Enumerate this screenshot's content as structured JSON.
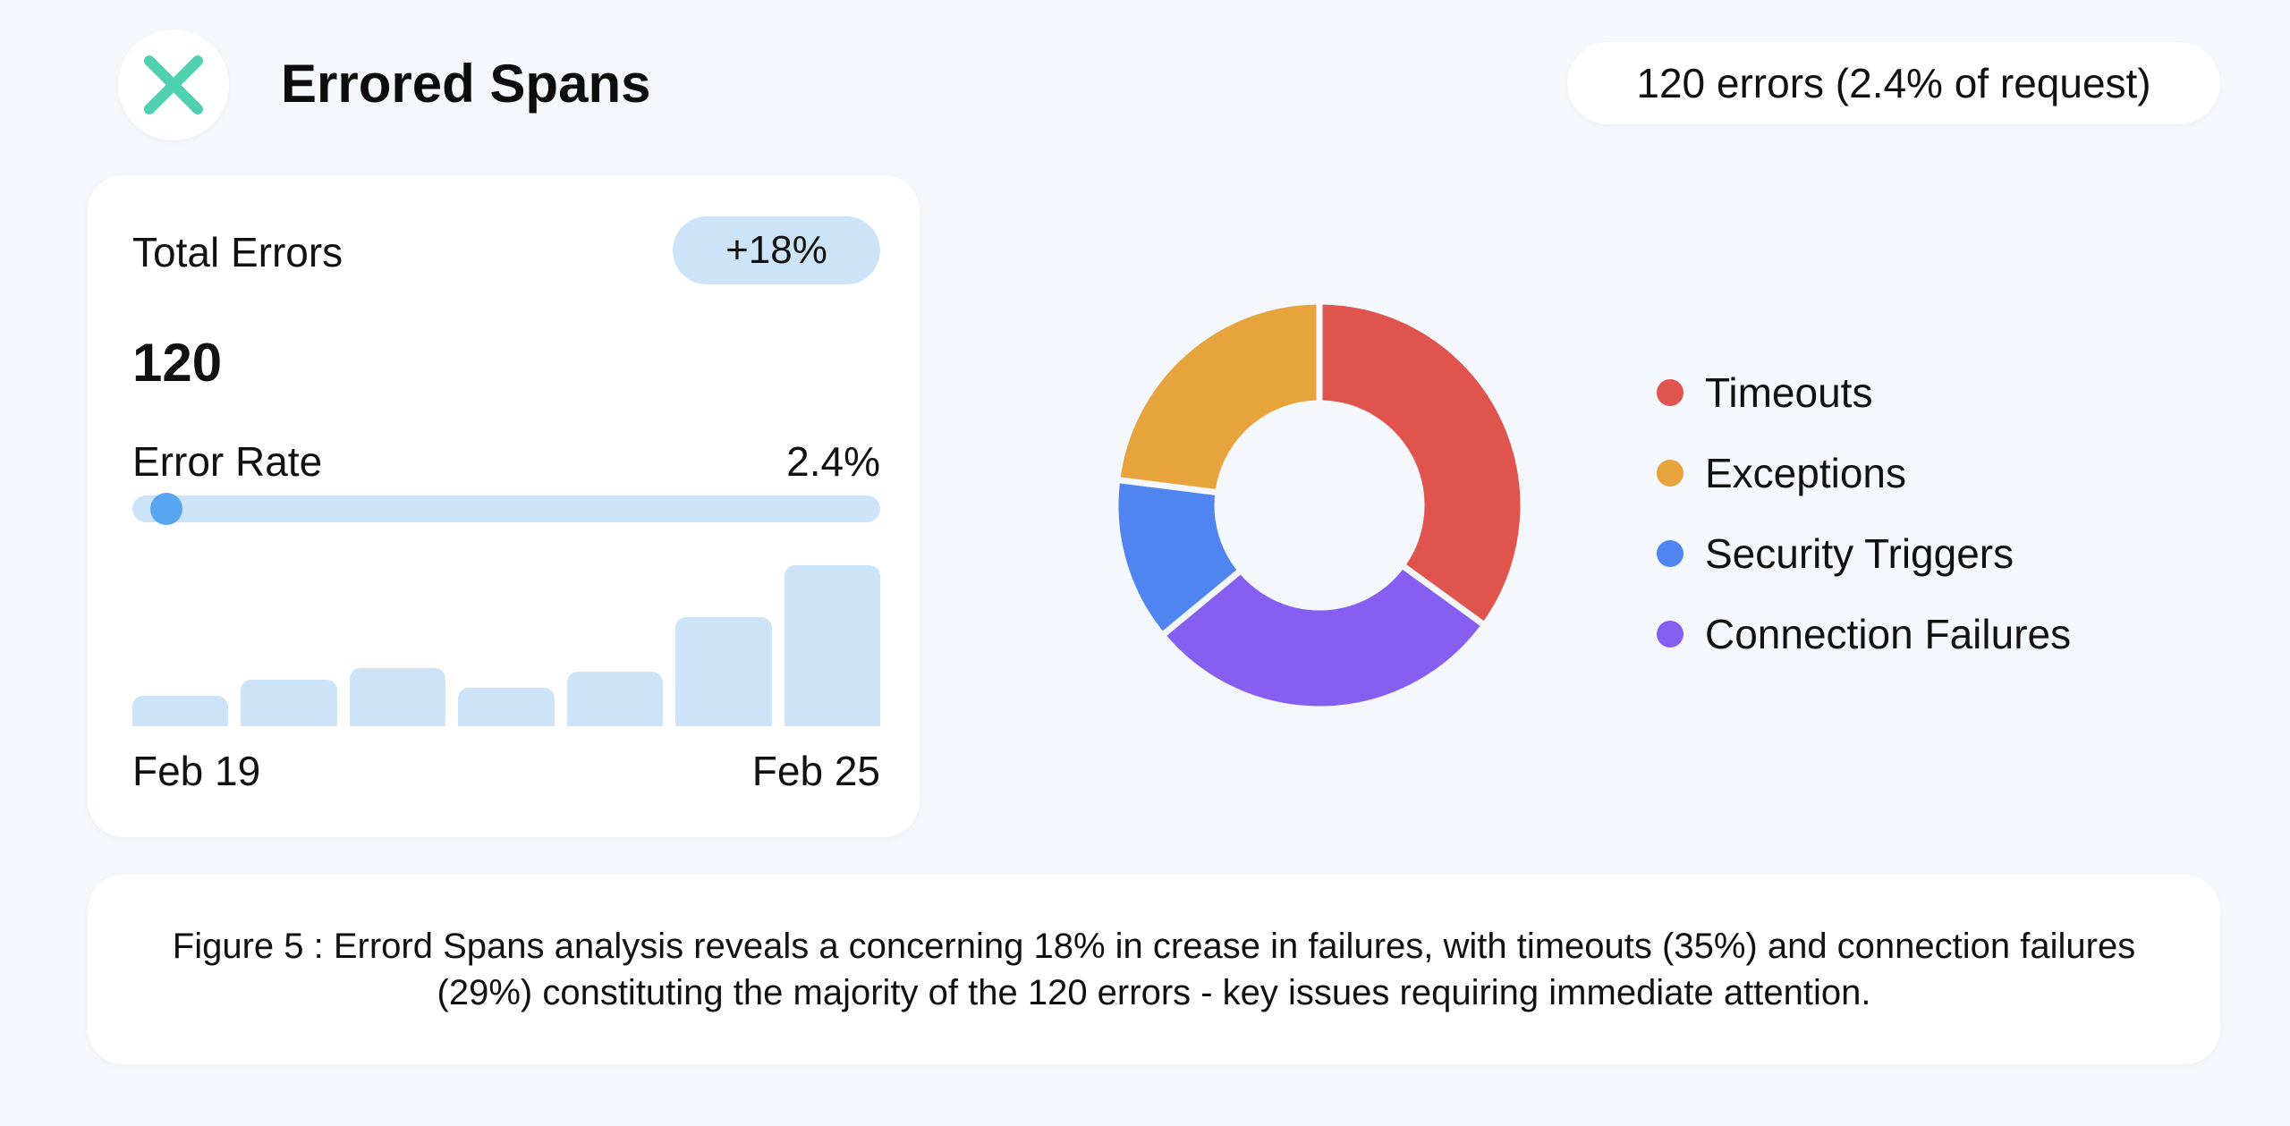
{
  "header": {
    "title": "Errored Spans",
    "summary": "120 errors (2.4% of request)",
    "logo_icon": "close-x-icon",
    "logo_color": "#4fd1b0"
  },
  "card": {
    "total_label": "Total Errors",
    "change_badge": "+18%",
    "total_value": "120",
    "rate_label": "Error Rate",
    "rate_value": "2.4%",
    "rate_fraction": 0.024,
    "start_date": "Feb 19",
    "end_date": "Feb 25"
  },
  "chart_data": [
    {
      "type": "bar",
      "categories": [
        "Feb 19",
        "",
        "",
        "",
        "",
        "",
        "Feb 25"
      ],
      "values": [
        19,
        29,
        36,
        24,
        34,
        68,
        100
      ],
      "title": "",
      "xlabel": "",
      "ylabel": "",
      "grid": false,
      "color": "#cde3f8"
    },
    {
      "type": "pie",
      "donut": true,
      "labels": [
        "Timeouts",
        "Connection Failures",
        "Security Triggers",
        "Exceptions"
      ],
      "values": [
        35,
        29,
        13,
        23
      ],
      "colors": [
        "#e0544e",
        "#875ff0",
        "#5084f0",
        "#e8a43c"
      ],
      "legend_position": "right",
      "legend": [
        {
          "label": "Timeouts",
          "color": "#e0544e"
        },
        {
          "label": "Exceptions",
          "color": "#e8a43c"
        },
        {
          "label": "Security Triggers",
          "color": "#5084f0"
        },
        {
          "label": "Connection Failures",
          "color": "#875ff0"
        }
      ]
    }
  ],
  "caption": "Figure 5 : Errord Spans analysis reveals a concerning 18% in crease in failures, with timeouts (35%) and connection failures (29%) constituting the majority of the 120 errors - key issues requiring immediate attention."
}
